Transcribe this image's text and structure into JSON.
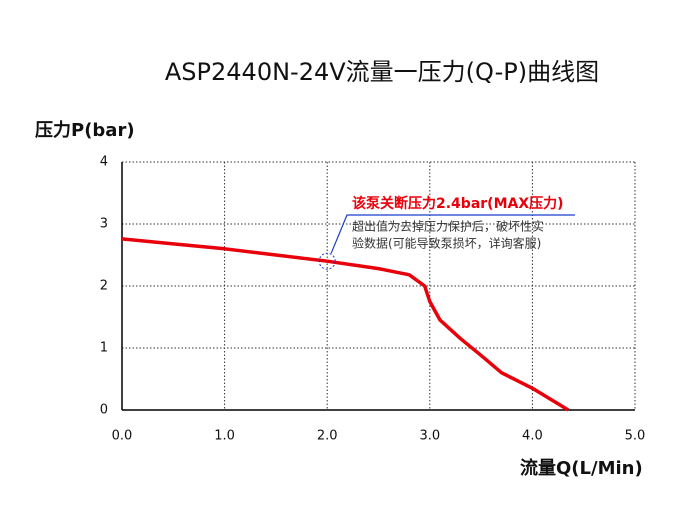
{
  "chart_data": {
    "type": "line",
    "title": "ASP2440N-24V流量一压力(Q-P)曲线图",
    "y_label": "压力P(bar)",
    "x_label": "流量Q(L/Min)",
    "xlim": [
      0,
      5
    ],
    "ylim": [
      0,
      4
    ],
    "xticks": [
      {
        "value": 0,
        "label": "0.0"
      },
      {
        "value": 1,
        "label": "1.0"
      },
      {
        "value": 2,
        "label": "2.0"
      },
      {
        "value": 3,
        "label": "3.0"
      },
      {
        "value": 4,
        "label": "4.0"
      },
      {
        "value": 5,
        "label": "5.0"
      }
    ],
    "yticks": [
      0,
      1,
      2,
      3,
      4
    ],
    "grid": true,
    "series": [
      {
        "color": "#e8000b",
        "x": [
          0,
          0.5,
          1,
          1.5,
          2,
          2.5,
          2.8,
          2.95,
          3.0,
          3.1,
          3.3,
          3.5,
          3.7,
          4.0,
          4.35
        ],
        "values": [
          2.76,
          2.68,
          2.6,
          2.5,
          2.4,
          2.28,
          2.18,
          2.0,
          1.75,
          1.45,
          1.15,
          0.88,
          0.6,
          0.35,
          0
        ]
      }
    ],
    "annotation": {
      "title": "该泵关断压力2.4bar(MAX压力)",
      "lines": [
        "超出值为去掉压力保护后，破坏性实",
        "验数据(可能导致泵损坏，详询客服)"
      ],
      "x": 2.0,
      "y": 2.4
    }
  }
}
